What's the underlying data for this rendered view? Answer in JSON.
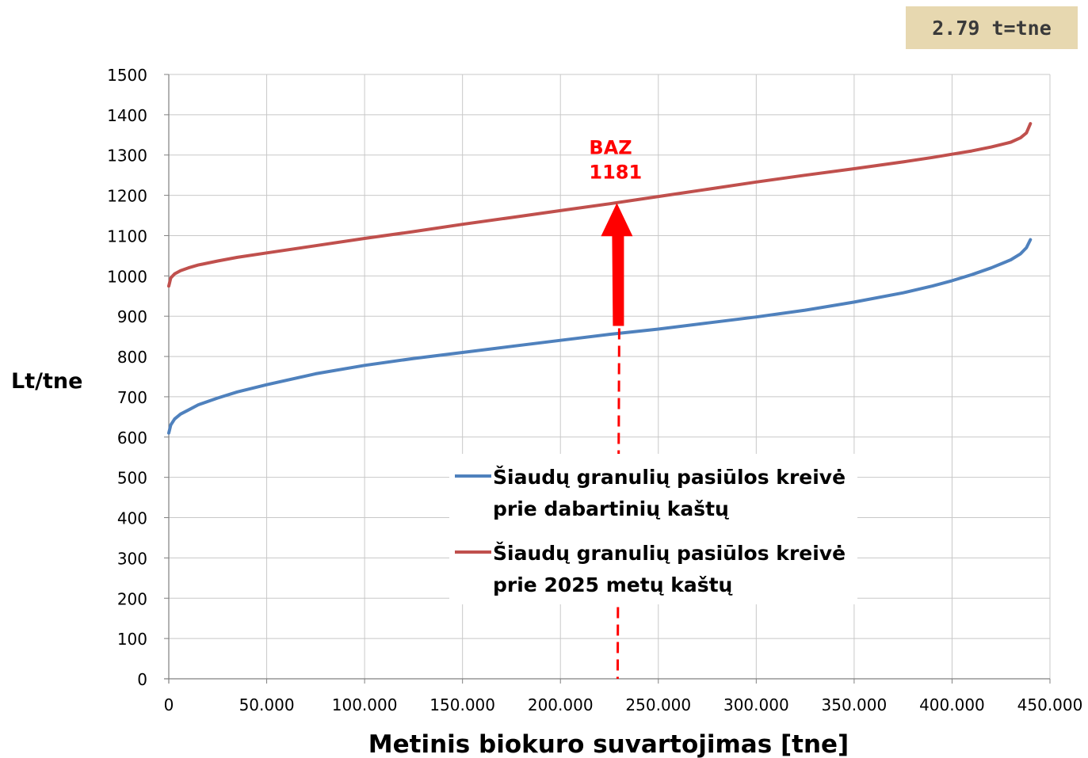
{
  "badge": "2.79 t=tne",
  "chart_data": {
    "type": "line",
    "title": "",
    "xlabel": "Metinis biokuro suvartojimas [tne]",
    "ylabel": "Lt/tne",
    "xlim": [
      0,
      450000
    ],
    "ylim": [
      0,
      1500
    ],
    "x_ticks": [
      0,
      50000,
      100000,
      150000,
      200000,
      250000,
      300000,
      350000,
      400000,
      450000
    ],
    "x_tick_labels": [
      "0",
      "50.000",
      "100.000",
      "150.000",
      "200.000",
      "250.000",
      "300.000",
      "350.000",
      "400.000",
      "450.000"
    ],
    "y_ticks": [
      0,
      100,
      200,
      300,
      400,
      500,
      600,
      700,
      800,
      900,
      1000,
      1100,
      1200,
      1300,
      1400,
      1500
    ],
    "y_tick_labels": [
      "0",
      "100",
      "200",
      "300",
      "400",
      "500",
      "600",
      "700",
      "800",
      "900",
      "1000",
      "1100",
      "1200",
      "1300",
      "1400",
      "1500"
    ],
    "grid": true,
    "legend_position": "bottom-center",
    "series": [
      {
        "name": "Šiaudų granulių pasiūlos kreivė prie dabartinių kaštų",
        "color": "#4f81bd",
        "x": [
          0,
          1000,
          3000,
          6000,
          10000,
          15000,
          25000,
          35000,
          50000,
          75000,
          100000,
          125000,
          150000,
          175000,
          200000,
          225000,
          250000,
          275000,
          300000,
          325000,
          350000,
          375000,
          390000,
          400000,
          410000,
          420000,
          430000,
          435000,
          438000,
          440000
        ],
        "y": [
          610,
          630,
          645,
          657,
          667,
          680,
          697,
          712,
          730,
          757,
          778,
          795,
          810,
          825,
          840,
          855,
          868,
          883,
          898,
          915,
          935,
          958,
          975,
          988,
          1003,
          1020,
          1040,
          1055,
          1070,
          1090
        ]
      },
      {
        "name": "Šiaudų granulių pasiūlos kreivė prie 2025 metų kaštų",
        "color": "#c0504d",
        "x": [
          0,
          1000,
          3000,
          6000,
          10000,
          15000,
          25000,
          35000,
          50000,
          75000,
          100000,
          125000,
          150000,
          175000,
          200000,
          225000,
          250000,
          275000,
          300000,
          325000,
          350000,
          375000,
          390000,
          400000,
          410000,
          420000,
          430000,
          435000,
          438000,
          440000
        ],
        "y": [
          975,
          995,
          1005,
          1013,
          1020,
          1027,
          1037,
          1046,
          1057,
          1075,
          1093,
          1110,
          1128,
          1145,
          1162,
          1179,
          1197,
          1215,
          1233,
          1250,
          1266,
          1283,
          1294,
          1302,
          1310,
          1320,
          1332,
          1343,
          1355,
          1378
        ]
      }
    ],
    "annotations": [
      {
        "text_line1": "BAZ",
        "text_line2": "1181",
        "x": 228000,
        "y_from": 870,
        "y_to": 1181,
        "dashed_to": 0
      }
    ]
  }
}
